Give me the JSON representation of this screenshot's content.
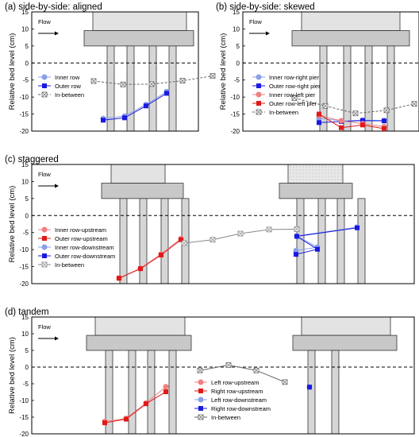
{
  "chart_data": [
    {
      "panel": "a",
      "type": "line",
      "title": "(a) side-by-side: aligned",
      "ylabel": "Relative bed level (cm)",
      "ylim": [
        -20,
        15
      ],
      "yticks": [
        15,
        10,
        5,
        0,
        -5,
        -10,
        -15,
        -20
      ],
      "flow_label": "Flow",
      "legend_position": "left, below bed-level line",
      "series": [
        {
          "name": "Inner row",
          "marker": "circle",
          "style": "solid",
          "color": "#8aa0e8",
          "x": [
            1,
            2,
            3,
            4
          ],
          "values": [
            -16.3,
            -15.6,
            -12.2,
            -8.4
          ]
        },
        {
          "name": "Outer row",
          "marker": "square",
          "style": "solid",
          "color": "#1a1ae0",
          "x": [
            1,
            2,
            3,
            4
          ],
          "values": [
            -16.8,
            -16.1,
            -12.6,
            -8.9
          ]
        },
        {
          "name": "In-between",
          "marker": "boxed-x",
          "style": "dashed",
          "color": "#666666",
          "x": [
            0,
            1.5,
            2.5,
            3.5,
            4.5
          ],
          "values": [
            -5.3,
            -6.3,
            -6.2,
            -5.2,
            -3.8
          ]
        }
      ]
    },
    {
      "panel": "b",
      "type": "line",
      "title": "(b) side-by-side: skewed",
      "ylabel": "Relative bed level (cm)",
      "ylim": [
        -20,
        15
      ],
      "yticks": [
        15,
        10,
        5,
        0,
        -5,
        -10,
        -15,
        -20
      ],
      "flow_label": "Flow",
      "legend_position": "left, below bed-level line",
      "series": [
        {
          "name": "Inner row-right pier",
          "marker": "circle",
          "style": "solid",
          "color": "#8aa0e8",
          "x": [
            1,
            2,
            3,
            4
          ],
          "values": [
            -16.2,
            -17.0,
            -16.8,
            -16.9
          ]
        },
        {
          "name": "Outer row-right pier",
          "marker": "square",
          "style": "solid",
          "color": "#1a1ae0",
          "x": [
            1,
            2,
            3,
            4
          ],
          "values": [
            -17.5,
            -17.2,
            -16.9,
            -17.0
          ]
        },
        {
          "name": "Inner row-left pier",
          "marker": "circle",
          "style": "solid",
          "color": "#f08080",
          "x": [
            1,
            2,
            3,
            4
          ],
          "values": [
            -15.4,
            -17.0,
            -17.8,
            -18.7
          ]
        },
        {
          "name": "Outer row-left pier",
          "marker": "square",
          "style": "solid",
          "color": "#e01a1a",
          "x": [
            1,
            2,
            3,
            4
          ],
          "values": [
            -15.0,
            -19.0,
            -18.2,
            -19.3
          ]
        },
        {
          "name": "In-between",
          "marker": "boxed-x",
          "style": "dashed",
          "color": "#666666",
          "x": [
            0,
            1.5,
            2.5,
            3.5,
            4.6
          ],
          "values": [
            -10.3,
            -12.6,
            -14.8,
            -13.9,
            -12.0
          ]
        }
      ]
    },
    {
      "panel": "c",
      "type": "line",
      "title": "(c) staggered",
      "ylabel": "Relative bed level (cm)",
      "ylim": [
        -20,
        15
      ],
      "yticks": [
        15,
        10,
        5,
        0,
        -5,
        -10,
        -15,
        -20
      ],
      "flow_label": "Flow",
      "legend_position": "left, below bed-level line",
      "series": [
        {
          "name": "Inner row-upstream",
          "marker": "circle",
          "style": "solid",
          "color": "#f08080",
          "x": [
            1,
            2,
            3,
            4
          ],
          "values": [
            -18.4,
            -15.5,
            -11.3,
            -6.8
          ]
        },
        {
          "name": "Outer row-upstream",
          "marker": "square",
          "style": "solid",
          "color": "#e01a1a",
          "x": [
            1,
            2,
            3,
            4
          ],
          "values": [
            -18.4,
            -15.6,
            -11.6,
            -7.1
          ]
        },
        {
          "name": "Inner row-downstream",
          "marker": "circle",
          "style": "solid",
          "color": "#8aa0e8",
          "x": [
            5,
            6,
            7,
            8
          ],
          "values": [
            -10.3,
            -9.3,
            -6.0,
            -3.4
          ]
        },
        {
          "name": "Outer row-downstream",
          "marker": "square",
          "style": "solid",
          "color": "#1a1ae0",
          "x": [
            5,
            6,
            7,
            8
          ],
          "values": [
            -11.4,
            -9.9,
            -6.1,
            -3.6
          ]
        },
        {
          "name": "In-between",
          "marker": "boxed-x",
          "style": "solid",
          "color": "#888888",
          "x": [
            4.2,
            4.7,
            5.5,
            6.2,
            7.0
          ],
          "values": [
            -8.1,
            -7.1,
            -5.3,
            -4.1,
            -4.0
          ]
        }
      ]
    },
    {
      "panel": "d",
      "type": "line",
      "title": "(d) tandem",
      "ylabel": "Relative bed level (cm)",
      "ylim": [
        -20,
        15
      ],
      "yticks": [
        15,
        10,
        5,
        0,
        -5,
        -10,
        -15,
        -20
      ],
      "flow_label": "Flow",
      "legend_position": "center, below bed-level line",
      "series": [
        {
          "name": "Left row-upstream",
          "marker": "circle",
          "style": "solid",
          "color": "#f08080",
          "x": [
            1,
            2,
            3,
            4
          ],
          "values": [
            -16.3,
            -15.4,
            -10.8,
            -5.9
          ]
        },
        {
          "name": "Right row-upstream",
          "marker": "square",
          "style": "solid",
          "color": "#e01a1a",
          "x": [
            1,
            2,
            3,
            4
          ],
          "values": [
            -16.7,
            -15.6,
            -11.0,
            -7.4
          ]
        },
        {
          "name": "Left row-downstream",
          "marker": "circle",
          "style": "solid",
          "color": "#8aa0e8",
          "x": [
            5
          ],
          "values": [
            -6.0
          ]
        },
        {
          "name": "Right row-downstream",
          "marker": "square",
          "style": "solid",
          "color": "#1a1ae0",
          "x": [
            5
          ],
          "values": [
            -6.0
          ]
        },
        {
          "name": "In-between",
          "marker": "boxed-x",
          "style": "solid",
          "color": "#666666",
          "x": [
            4.5,
            5.5,
            6.5,
            7.5
          ],
          "values": [
            -1.0,
            0.6,
            -1.0,
            -4.5
          ]
        }
      ]
    }
  ]
}
